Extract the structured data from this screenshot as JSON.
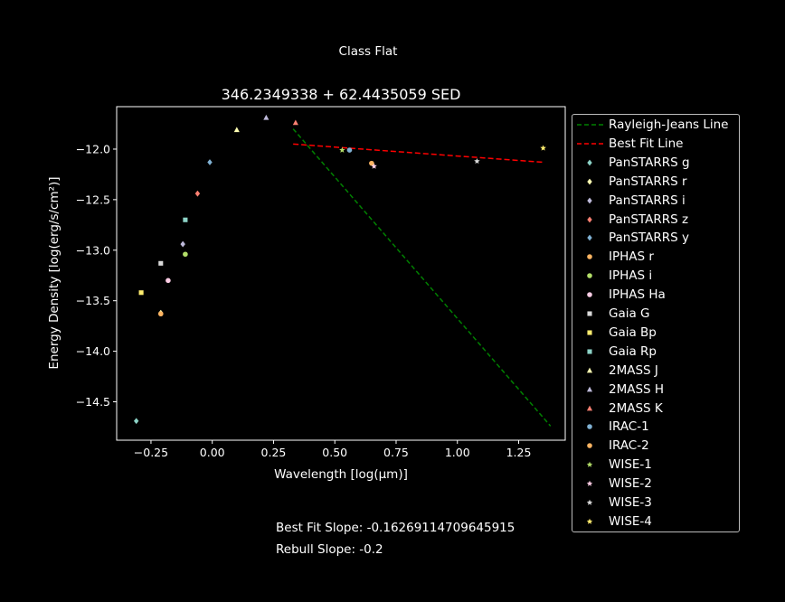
{
  "suptitle": "Class Flat",
  "footer": {
    "best_fit_slope": "Best Fit Slope: -0.16269114709645915",
    "rebull_slope": "Rebull Slope: -0.2"
  },
  "chart_data": {
    "type": "scatter",
    "title": "346.2349338 + 62.4435059 SED",
    "xlabel": "Wavelength [log(μm)]",
    "ylabel": "Energy Density [log(erg/s/cm²)]",
    "xlim": [
      -0.39,
      1.44
    ],
    "ylim": [
      -14.88,
      -11.58
    ],
    "xticks": [
      {
        "v": -0.25,
        "label": "−0.25"
      },
      {
        "v": 0.0,
        "label": "0.00"
      },
      {
        "v": 0.25,
        "label": "0.25"
      },
      {
        "v": 0.5,
        "label": "0.50"
      },
      {
        "v": 0.75,
        "label": "0.75"
      },
      {
        "v": 1.0,
        "label": "1.00"
      },
      {
        "v": 1.25,
        "label": "1.25"
      }
    ],
    "yticks": [
      {
        "v": -12.0,
        "label": "−12.0"
      },
      {
        "v": -12.5,
        "label": "−12.5"
      },
      {
        "v": -13.0,
        "label": "−13.0"
      },
      {
        "v": -13.5,
        "label": "−13.5"
      },
      {
        "v": -14.0,
        "label": "−14.0"
      },
      {
        "v": -14.5,
        "label": "−14.5"
      }
    ],
    "grid": false,
    "legend_position": "outside-right",
    "lines": [
      {
        "name": "Rayleigh-Jeans Line",
        "color": "#008000",
        "dash": "5,3",
        "x": [
          0.33,
          1.38
        ],
        "y": [
          -11.8,
          -14.74
        ]
      },
      {
        "name": "Best Fit Line",
        "color": "#ff0000",
        "dash": "6,3",
        "x": [
          0.33,
          1.35
        ],
        "y": [
          -11.95,
          -12.13
        ]
      }
    ],
    "series": [
      {
        "name": "PanSTARRS g",
        "marker": "diamond",
        "color": "#8dd3c7",
        "x": [
          -0.31
        ],
        "y": [
          -14.69
        ]
      },
      {
        "name": "PanSTARRS r",
        "marker": "diamond",
        "color": "#ffffb3",
        "x": [
          -0.21
        ],
        "y": [
          -13.62
        ]
      },
      {
        "name": "PanSTARRS i",
        "marker": "diamond",
        "color": "#bebada",
        "x": [
          -0.12
        ],
        "y": [
          -12.94
        ]
      },
      {
        "name": "PanSTARRS z",
        "marker": "diamond",
        "color": "#fb8072",
        "x": [
          -0.06
        ],
        "y": [
          -12.44
        ]
      },
      {
        "name": "PanSTARRS y",
        "marker": "diamond",
        "color": "#80b1d3",
        "x": [
          -0.01
        ],
        "y": [
          -12.13
        ]
      },
      {
        "name": "IPHAS r",
        "marker": "circle",
        "color": "#fdb462",
        "x": [
          -0.21
        ],
        "y": [
          -13.63
        ]
      },
      {
        "name": "IPHAS i",
        "marker": "circle",
        "color": "#b3de69",
        "x": [
          -0.11
        ],
        "y": [
          -13.04
        ]
      },
      {
        "name": "IPHAS Ha",
        "marker": "circle",
        "color": "#fccde5",
        "x": [
          -0.18
        ],
        "y": [
          -13.3
        ]
      },
      {
        "name": "Gaia G",
        "marker": "square",
        "color": "#d9d9d9",
        "x": [
          -0.21
        ],
        "y": [
          -13.13
        ]
      },
      {
        "name": "Gaia Bp",
        "marker": "square",
        "color": "#ffed6f",
        "x": [
          -0.29
        ],
        "y": [
          -13.42
        ]
      },
      {
        "name": "Gaia Rp",
        "marker": "square",
        "color": "#8dd3c7",
        "x": [
          -0.11
        ],
        "y": [
          -12.7
        ]
      },
      {
        "name": "2MASS J",
        "marker": "triangle",
        "color": "#ffffb3",
        "x": [
          0.1
        ],
        "y": [
          -11.81
        ]
      },
      {
        "name": "2MASS H",
        "marker": "triangle",
        "color": "#bebada",
        "x": [
          0.22
        ],
        "y": [
          -11.69
        ]
      },
      {
        "name": "2MASS K",
        "marker": "triangle",
        "color": "#fb8072",
        "x": [
          0.34
        ],
        "y": [
          -11.74
        ]
      },
      {
        "name": "IRAC-1",
        "marker": "circle",
        "color": "#80b1d3",
        "x": [
          0.56
        ],
        "y": [
          -12.01
        ]
      },
      {
        "name": "IRAC-2",
        "marker": "circle",
        "color": "#fdb462",
        "x": [
          0.65
        ],
        "y": [
          -12.14
        ]
      },
      {
        "name": "WISE-1",
        "marker": "star",
        "color": "#b3de69",
        "x": [
          0.53
        ],
        "y": [
          -12.01
        ]
      },
      {
        "name": "WISE-2",
        "marker": "star",
        "color": "#fccde5",
        "x": [
          0.66
        ],
        "y": [
          -12.17
        ]
      },
      {
        "name": "WISE-3",
        "marker": "star",
        "color": "#d9d9d9",
        "x": [
          1.08
        ],
        "y": [
          -12.12
        ]
      },
      {
        "name": "WISE-4",
        "marker": "star",
        "color": "#ffed6f",
        "x": [
          1.35
        ],
        "y": [
          -11.99
        ]
      }
    ]
  }
}
